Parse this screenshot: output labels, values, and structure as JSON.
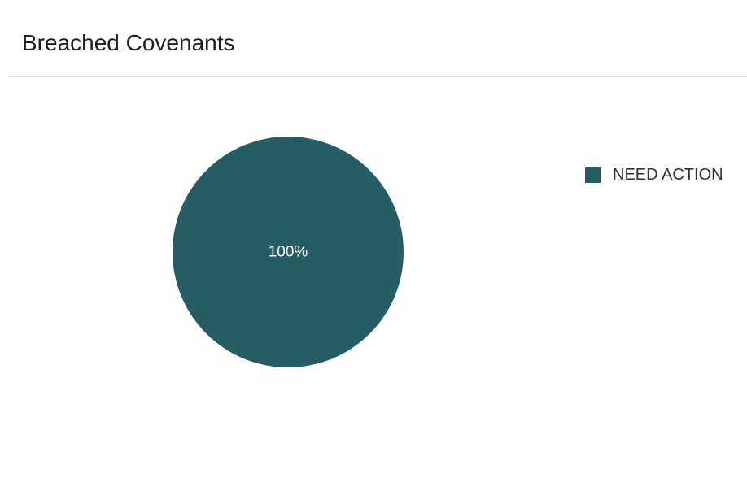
{
  "widget": {
    "title": "Breached Covenants"
  },
  "colors": {
    "need_action": "#255d62",
    "slice_text": "#ffffff",
    "divider": "#e3e3e3"
  },
  "chart_data": {
    "type": "pie",
    "title": "Breached Covenants",
    "slices": [
      {
        "label": "NEED ACTION",
        "value": 100,
        "percent_label": "100%",
        "color": "#255d62"
      }
    ],
    "legend_position": "right"
  }
}
